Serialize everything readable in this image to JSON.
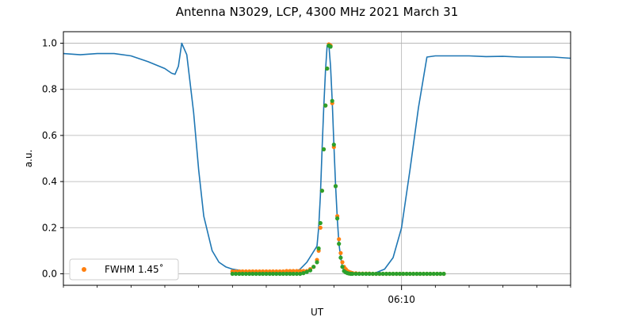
{
  "chart_data": {
    "type": "line",
    "title": "Antenna N3029, LCP, 4300 MHz 2021 March 31",
    "xlabel": "UT",
    "ylabel": "a.u.",
    "xlim_minutes_rel": [
      -20,
      10
    ],
    "ylim": [
      -0.05,
      1.05
    ],
    "x_tick_label": "06:10",
    "y_ticks": [
      "0.0",
      "0.2",
      "0.4",
      "0.6",
      "0.8",
      "1.0"
    ],
    "grid": "y-major and the 06:10 x tick",
    "legend_position": "lower-left",
    "series": [
      {
        "name": "",
        "kind": "line",
        "color": "#1f77b4",
        "t_min_rel": [
          -20,
          -19,
          -18,
          -17,
          -16,
          -15,
          -14,
          -13.8,
          -13.6,
          -13.4,
          -13.2,
          -13.0,
          -12.7,
          -12.3,
          -12.0,
          -11.7,
          -11.2,
          -10.8,
          -10.4,
          -10.0,
          -9.6,
          -9.0,
          -8.0,
          -7.0,
          -6.9,
          -6.6,
          -6.4,
          -6.2,
          -6.0,
          -5.6,
          -5.0,
          -4.9,
          -4.8,
          -4.7,
          -4.6,
          -4.5,
          -4.4,
          -4.3,
          -4.2,
          -4.1,
          -4.0,
          -3.9,
          -3.8,
          -3.7,
          -3.6,
          -3.5,
          -3.4,
          -3.3,
          -3.2,
          -3.1,
          -3.0,
          -2.9,
          -2.8,
          -2.7,
          -2.6,
          -2.5,
          -2.4,
          -2.3,
          -2.2,
          -2.0,
          -1.8,
          -1.5,
          -1.0,
          -0.5,
          0.0,
          0.5,
          1.0,
          1.5,
          2.0,
          3.0,
          4.0,
          5.0,
          6.0,
          7.0,
          8.0,
          9.0,
          10.0
        ],
        "values": [
          0.955,
          0.95,
          0.955,
          0.955,
          0.945,
          0.92,
          0.89,
          0.88,
          0.87,
          0.865,
          0.9,
          1.0,
          0.95,
          0.7,
          0.45,
          0.25,
          0.1,
          0.05,
          0.03,
          0.02,
          0.015,
          0.01,
          0.007,
          0.005,
          0.006,
          0.007,
          0.009,
          0.012,
          0.02,
          0.05,
          0.12,
          0.2,
          0.34,
          0.54,
          0.72,
          0.88,
          0.99,
          0.995,
          0.9,
          0.75,
          0.56,
          0.38,
          0.24,
          0.13,
          0.07,
          0.03,
          0.012,
          0.006,
          0.003,
          0.002,
          0.001,
          0.0,
          0.0,
          0.0,
          0.0,
          0.0,
          0.0,
          0.0,
          0.0,
          0.0,
          0.0,
          0.005,
          0.02,
          0.07,
          0.2,
          0.45,
          0.72,
          0.94,
          0.945,
          0.945,
          0.945,
          0.942,
          0.943,
          0.94,
          0.94,
          0.94,
          0.935
        ]
      },
      {
        "name": "FWHM 1.45˚",
        "kind": "scatter",
        "color": "#ff7f0e",
        "t_min_rel": [
          -10,
          -9.8,
          -9.6,
          -9.4,
          -9.2,
          -9,
          -8.8,
          -8.6,
          -8.4,
          -8.2,
          -8,
          -7.8,
          -7.6,
          -7.4,
          -7.2,
          -7,
          -6.8,
          -6.6,
          -6.4,
          -6.2,
          -6,
          -5.8,
          -5.6,
          -5.4,
          -5.2,
          -5,
          -4.9,
          -4.8,
          -4.7,
          -4.6,
          -4.5,
          -4.4,
          -4.3,
          -4.2,
          -4.1,
          -4,
          -3.9,
          -3.8,
          -3.7,
          -3.6,
          -3.5,
          -3.4,
          -3.3,
          -3.2,
          -3.1,
          -3.0,
          -2.9,
          -2.7,
          -2.5,
          -2.3,
          -2.1,
          -1.9,
          -1.7,
          -1.5,
          -1.3,
          -1.1,
          -0.9,
          -0.7,
          -0.5,
          -0.3,
          -0.1,
          0.1,
          0.3,
          0.5,
          0.7,
          0.9,
          1.1,
          1.3,
          1.5,
          1.7,
          1.9,
          2.1,
          2.3,
          2.5
        ],
        "values": [
          0.01,
          0.01,
          0.01,
          0.01,
          0.01,
          0.01,
          0.01,
          0.01,
          0.01,
          0.01,
          0.01,
          0.01,
          0.01,
          0.01,
          0.01,
          0.01,
          0.012,
          0.012,
          0.012,
          0.012,
          0.012,
          0.012,
          0.012,
          0.02,
          0.03,
          0.06,
          0.1,
          0.2,
          0.36,
          0.54,
          0.73,
          0.89,
          0.995,
          0.99,
          0.74,
          0.55,
          0.38,
          0.25,
          0.15,
          0.09,
          0.05,
          0.03,
          0.02,
          0.012,
          0.008,
          0.005,
          0.003,
          0.002,
          0.001,
          0.001,
          0.001,
          0.001,
          0.0,
          0.0,
          0.0,
          0.0,
          0.0,
          0.0,
          0.0,
          0.0,
          0.0,
          0.0,
          0.0,
          0.0,
          0.0,
          0.0,
          0.0,
          0.0,
          0.0,
          0.0,
          0.0,
          0.0,
          0.0,
          0.0
        ]
      },
      {
        "name": "",
        "kind": "scatter",
        "color": "#2ca02c",
        "t_min_rel": [
          -10,
          -9.8,
          -9.6,
          -9.4,
          -9.2,
          -9,
          -8.8,
          -8.6,
          -8.4,
          -8.2,
          -8,
          -7.8,
          -7.6,
          -7.4,
          -7.2,
          -7,
          -6.8,
          -6.6,
          -6.4,
          -6.2,
          -6,
          -5.8,
          -5.6,
          -5.4,
          -5.2,
          -5,
          -4.9,
          -4.8,
          -4.7,
          -4.6,
          -4.5,
          -4.4,
          -4.3,
          -4.2,
          -4.1,
          -4,
          -3.9,
          -3.8,
          -3.7,
          -3.6,
          -3.5,
          -3.4,
          -3.3,
          -3.2,
          -3.1,
          -3.0,
          -2.9,
          -2.7,
          -2.5,
          -2.3,
          -2.1,
          -1.9,
          -1.7,
          -1.5,
          -1.3,
          -1.1,
          -0.9,
          -0.7,
          -0.5,
          -0.3,
          -0.1,
          0.1,
          0.3,
          0.5,
          0.7,
          0.9,
          1.1,
          1.3,
          1.5,
          1.7,
          1.9,
          2.1,
          2.3,
          2.5
        ],
        "values": [
          0.0,
          0.0,
          0.0,
          0.0,
          0.0,
          0.0,
          0.0,
          0.0,
          0.0,
          0.0,
          0.0,
          0.0,
          0.0,
          0.0,
          0.0,
          0.0,
          0.0,
          0.0,
          0.0,
          0.0,
          0.0,
          0.003,
          0.008,
          0.015,
          0.03,
          0.05,
          0.11,
          0.22,
          0.36,
          0.54,
          0.73,
          0.89,
          0.99,
          0.985,
          0.75,
          0.56,
          0.38,
          0.24,
          0.13,
          0.07,
          0.03,
          0.012,
          0.006,
          0.003,
          0.001,
          0.0,
          0.0,
          0.0,
          0.0,
          0.0,
          0.0,
          0.0,
          0.0,
          0.0,
          0.0,
          0.0,
          0.0,
          0.0,
          0.0,
          0.0,
          0.0,
          0.0,
          0.0,
          0.0,
          0.0,
          0.0,
          0.0,
          0.0,
          0.0,
          0.0,
          0.0,
          0.0,
          0.0,
          0.0
        ]
      }
    ]
  }
}
